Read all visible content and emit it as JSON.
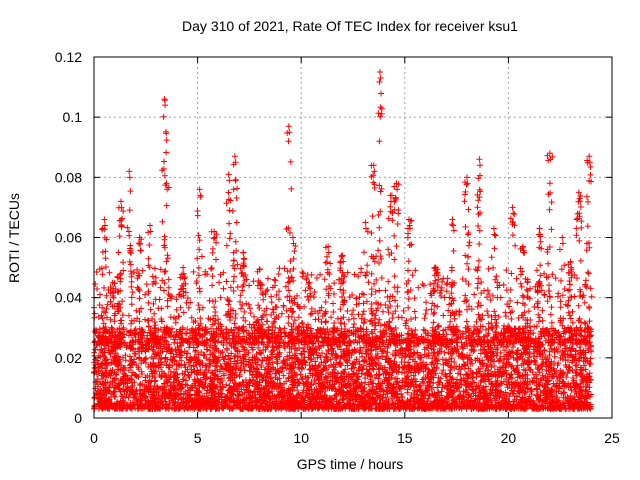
{
  "chart_data": {
    "type": "scatter",
    "title": "Day 310 of 2021, Rate Of TEC Index for receiver ksu1",
    "xlabel": "GPS time / hours",
    "ylabel": "ROTI / TECUs",
    "xlim": [
      0,
      25
    ],
    "ylim": [
      0,
      0.12
    ],
    "x_ticks": [
      0,
      5,
      10,
      15,
      20,
      25
    ],
    "x_tick_labels": [
      "0",
      "5",
      "10",
      "15",
      "20",
      "25"
    ],
    "y_ticks": [
      0,
      0.02,
      0.04,
      0.06,
      0.08,
      0.1,
      0.12
    ],
    "y_tick_labels": [
      "0",
      "0.02",
      "0.04",
      "0.06",
      "0.08",
      "0.1",
      "0.12"
    ],
    "grid": true,
    "marker": "plus",
    "color": "#ff0000",
    "legend": "none",
    "peaks": [
      {
        "x": 0.5,
        "y": 0.066
      },
      {
        "x": 0.9,
        "y": 0.045
      },
      {
        "x": 1.3,
        "y": 0.072
      },
      {
        "x": 1.7,
        "y": 0.082
      },
      {
        "x": 2.2,
        "y": 0.06
      },
      {
        "x": 2.7,
        "y": 0.064
      },
      {
        "x": 3.4,
        "y": 0.106
      },
      {
        "x": 3.5,
        "y": 0.078
      },
      {
        "x": 4.3,
        "y": 0.05
      },
      {
        "x": 5.1,
        "y": 0.076
      },
      {
        "x": 5.8,
        "y": 0.062
      },
      {
        "x": 6.5,
        "y": 0.081
      },
      {
        "x": 6.8,
        "y": 0.087
      },
      {
        "x": 7.2,
        "y": 0.055
      },
      {
        "x": 8.0,
        "y": 0.045
      },
      {
        "x": 8.7,
        "y": 0.046
      },
      {
        "x": 9.4,
        "y": 0.097
      },
      {
        "x": 9.6,
        "y": 0.06
      },
      {
        "x": 10.4,
        "y": 0.045
      },
      {
        "x": 11.3,
        "y": 0.057
      },
      {
        "x": 12.0,
        "y": 0.054
      },
      {
        "x": 13.1,
        "y": 0.065
      },
      {
        "x": 13.5,
        "y": 0.084
      },
      {
        "x": 13.8,
        "y": 0.115
      },
      {
        "x": 14.3,
        "y": 0.074
      },
      {
        "x": 14.6,
        "y": 0.078
      },
      {
        "x": 15.2,
        "y": 0.066
      },
      {
        "x": 16.5,
        "y": 0.05
      },
      {
        "x": 17.3,
        "y": 0.066
      },
      {
        "x": 18.0,
        "y": 0.08
      },
      {
        "x": 18.6,
        "y": 0.086
      },
      {
        "x": 19.3,
        "y": 0.063
      },
      {
        "x": 20.2,
        "y": 0.07
      },
      {
        "x": 20.7,
        "y": 0.057
      },
      {
        "x": 21.5,
        "y": 0.063
      },
      {
        "x": 22.0,
        "y": 0.088
      },
      {
        "x": 22.6,
        "y": 0.06
      },
      {
        "x": 23.0,
        "y": 0.052
      },
      {
        "x": 23.4,
        "y": 0.075
      },
      {
        "x": 23.9,
        "y": 0.087
      }
    ],
    "background_band": {
      "min": 0.003,
      "max": 0.03
    }
  }
}
